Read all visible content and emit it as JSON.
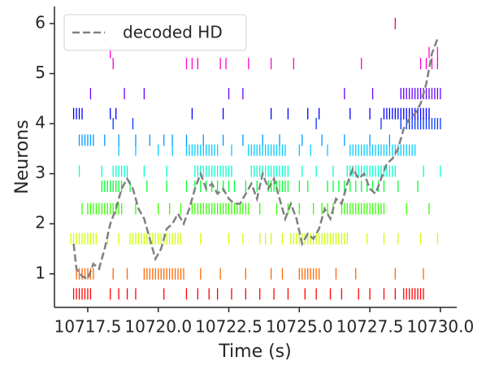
{
  "chart_data": {
    "type": "raster",
    "xlabel": "Time (s)",
    "ylabel": "Neurons",
    "xlim": [
      10716.32,
      10730.58
    ],
    "ylim": [
      0.33,
      6.34
    ],
    "xticks": [
      10717.5,
      {
        "value": 10720,
        "label": "10720.0"
      },
      10722.5,
      {
        "value": 10725,
        "label": "10725.0"
      },
      10727.5,
      {
        "value": 10730,
        "label": "10730.0"
      }
    ],
    "yticks": [
      1,
      2,
      3,
      4,
      5,
      6
    ],
    "legend": "upper left",
    "rows": [
      {
        "color": "#ff0000",
        "level": 0.6,
        "times": [
          10717.0,
          10717.1,
          10717.2,
          10717.3,
          10717.4,
          10717.5,
          10717.6,
          10718.3,
          10718.6,
          10718.9,
          10719.2,
          10720.2,
          10721.0,
          10721.4,
          10721.8,
          10722.1,
          10722.6,
          10723.1,
          10723.6,
          10724.1,
          10724.6,
          10725.2,
          10725.6,
          10726.1,
          10726.5,
          10727.1,
          10727.5,
          10728.0,
          10728.4,
          10728.7,
          10728.8,
          10728.9,
          10729.0,
          10729.1,
          10729.2,
          10729.3,
          10729.4
        ]
      },
      {
        "color": "#ff6600",
        "level": 1.0,
        "times": [
          10717.1,
          10717.2,
          10717.3,
          10717.4,
          10717.5,
          10717.6,
          10717.7,
          10718.4,
          10718.9,
          10719.5,
          10719.6,
          10719.7,
          10719.8,
          10719.9,
          10720.0,
          10720.1,
          10720.2,
          10720.3,
          10720.4,
          10720.5,
          10720.6,
          10720.7,
          10720.8,
          10720.9,
          10721.5,
          10722.2,
          10723.1,
          10724.0,
          10724.4,
          10725.0,
          10725.1,
          10725.2,
          10725.3,
          10725.4,
          10725.5,
          10725.6,
          10725.7,
          10726.3,
          10727.0,
          10728.4,
          10729.4
        ]
      },
      {
        "color": "#ccff00",
        "level": 1.7,
        "times": [
          10716.9,
          10717.0,
          10717.1,
          10717.2,
          10717.3,
          10717.4,
          10717.5,
          10717.6,
          10717.7,
          10717.8,
          10718.2,
          10718.6,
          10719.0,
          10719.1,
          10719.2,
          10719.3,
          10719.4,
          10719.5,
          10719.6,
          10719.7,
          10719.8,
          10719.9,
          10720.0,
          10720.1,
          10720.2,
          10720.3,
          10720.4,
          10720.5,
          10720.6,
          10720.7,
          10720.8,
          10721.5,
          10722.5,
          10723.0,
          10723.6,
          10723.8,
          10724.0,
          10724.4,
          10724.7,
          10724.8,
          10724.9,
          10725.0,
          10725.1,
          10725.2,
          10725.3,
          10725.4,
          10725.5,
          10725.6,
          10725.7,
          10725.8,
          10725.9,
          10726.0,
          10726.1,
          10726.2,
          10726.3,
          10726.4,
          10726.5,
          10726.6,
          10726.7,
          10727.4,
          10728.0,
          10728.5,
          10729.3,
          10729.9
        ]
      },
      {
        "color": "#33ff00",
        "level": 2.3,
        "times": [
          10717.3,
          10717.5,
          10717.6,
          10717.7,
          10717.8,
          10717.9,
          10718.0,
          10718.1,
          10718.2,
          10718.3,
          10718.4,
          10718.5,
          10718.6,
          10718.7,
          10719.2,
          10720.0,
          10720.4,
          10720.8,
          10721.2,
          10721.3,
          10721.4,
          10721.5,
          10721.6,
          10721.7,
          10721.8,
          10721.9,
          10722.0,
          10722.1,
          10722.2,
          10722.3,
          10722.4,
          10722.5,
          10722.6,
          10722.7,
          10722.8,
          10722.9,
          10723.0,
          10723.1,
          10723.2,
          10723.6,
          10724.2,
          10724.6,
          10725.0,
          10725.5,
          10725.8,
          10726.0,
          10726.2,
          10726.5,
          10726.6,
          10726.7,
          10726.8,
          10726.9,
          10727.0,
          10727.1,
          10727.2,
          10727.3,
          10727.4,
          10727.5,
          10727.6,
          10727.7,
          10727.8,
          10727.9,
          10728.0,
          10728.8,
          10729.6
        ]
      },
      {
        "color": "#00ff33",
        "level": 2.75,
        "times": [
          10718.0,
          10718.1,
          10718.2,
          10718.3,
          10718.4,
          10718.5,
          10718.6,
          10718.7,
          10719.0,
          10719.6,
          10720.3,
          10721.0,
          10721.3,
          10721.5,
          10721.7,
          10721.9,
          10722.1,
          10722.3,
          10722.5,
          10722.7,
          10723.1,
          10723.5,
          10723.9,
          10724.0,
          10724.1,
          10724.2,
          10724.3,
          10724.4,
          10724.5,
          10724.6,
          10725.0,
          10725.3,
          10726.0,
          10726.2,
          10726.4,
          10726.6,
          10726.8,
          10727.0,
          10727.2,
          10727.4,
          10727.6,
          10727.8,
          10728.0,
          10728.5,
          10729.2
        ]
      },
      {
        "color": "#00ffcc",
        "level": 3.05,
        "times": [
          10717.2,
          10718.0,
          10718.4,
          10718.5,
          10718.6,
          10718.7,
          10718.8,
          10718.9,
          10719.5,
          10720.3,
          10721.3,
          10721.4,
          10721.5,
          10721.6,
          10721.7,
          10721.8,
          10721.9,
          10722.0,
          10722.1,
          10722.2,
          10722.3,
          10722.4,
          10722.5,
          10722.6,
          10723.3,
          10723.4,
          10723.5,
          10723.6,
          10723.7,
          10723.8,
          10723.9,
          10724.0,
          10724.1,
          10724.2,
          10724.3,
          10724.4,
          10724.5,
          10724.6,
          10725.1,
          10725.6,
          10726.2,
          10726.7,
          10726.8,
          10726.9,
          10727.0,
          10727.1,
          10727.2,
          10727.3,
          10727.4,
          10727.5,
          10727.6,
          10727.7,
          10727.8,
          10727.9,
          10728.0,
          10728.1,
          10728.2,
          10728.3,
          10728.4,
          10729.4,
          10730.0
        ]
      },
      {
        "color": "#00ccff",
        "level": 3.47,
        "times": [
          10718.6,
          10719.2,
          10720.0,
          10720.5,
          10721.0,
          10721.1,
          10721.2,
          10721.3,
          10721.4,
          10721.5,
          10721.6,
          10721.7,
          10721.8,
          10721.9,
          10722.0,
          10722.1,
          10722.6,
          10723.2,
          10723.3,
          10723.4,
          10723.5,
          10723.6,
          10723.7,
          10723.8,
          10723.9,
          10724.0,
          10724.1,
          10724.2,
          10724.3,
          10724.4,
          10724.5,
          10725.0,
          10725.4,
          10726.0,
          10726.8,
          10726.9,
          10727.0,
          10727.1,
          10727.2,
          10727.3,
          10727.4,
          10727.5,
          10727.6,
          10727.7,
          10727.8,
          10727.9,
          10728.0,
          10728.1,
          10728.2,
          10728.3,
          10728.4,
          10728.5,
          10728.6,
          10728.7,
          10728.8,
          10728.9,
          10729.0,
          10729.1
        ]
      },
      {
        "color": "#0099ff",
        "level": 3.67,
        "times": [
          10717.2,
          10717.3,
          10717.4,
          10717.5,
          10717.6,
          10717.7,
          10718.1,
          10718.6,
          10719.2,
          10719.7,
          10720.2,
          10720.5,
          10721.0,
          10721.6,
          10722.3,
          10723.0,
          10723.7,
          10724.3,
          10725.1,
          10725.8,
          10726.6,
          10727.5,
          10728.2
        ]
      },
      {
        "color": "#0033ff",
        "level": 4.0,
        "times": [
          10718.4,
          10719.1,
          10725.6,
          10727.9,
          10728.6,
          10728.8,
          10728.9,
          10729.0,
          10729.1,
          10729.2,
          10729.3,
          10729.4,
          10729.5,
          10729.6,
          10729.7,
          10729.8,
          10729.9,
          10730.0
        ]
      },
      {
        "color": "#0000ff",
        "level": 4.2,
        "times": [
          10717.0,
          10717.1,
          10717.2,
          10717.3,
          10718.3,
          10718.5,
          10721.2,
          10722.3,
          10724.0,
          10724.6,
          10725.3,
          10725.7,
          10726.8,
          10727.5,
          10728.0,
          10728.1,
          10728.2,
          10728.3,
          10728.4,
          10728.5,
          10728.6,
          10728.7,
          10728.8,
          10728.9,
          10729.0,
          10729.1,
          10729.2,
          10729.3,
          10729.4,
          10729.5,
          10729.6
        ]
      },
      {
        "color": "#6600ff",
        "level": 4.6,
        "times": [
          10717.6,
          10718.8,
          10719.5,
          10722.5,
          10723.0,
          10726.6,
          10727.6,
          10728.6,
          10728.7,
          10728.8,
          10728.9,
          10729.0,
          10729.1,
          10729.2,
          10729.3,
          10729.4,
          10729.5,
          10729.6,
          10729.7,
          10729.8,
          10729.9,
          10730.0
        ]
      },
      {
        "color": "#ff00cc",
        "level": 5.2,
        "times": [
          10718.4,
          10721.0,
          10721.2,
          10721.4,
          10722.2,
          10722.4,
          10723.2,
          10724.0,
          10724.8,
          10727.2,
          10729.3,
          10729.5,
          10729.7,
          10729.9
        ]
      },
      {
        "color": "#ff00dd",
        "level": 5.42,
        "times": [
          10718.3,
          10729.6,
          10729.9
        ]
      },
      {
        "color": "#ff0033",
        "level": 6.0,
        "times": [
          10728.4
        ]
      }
    ],
    "line": {
      "name": "decoded HD",
      "color": "#808080",
      "x": [
        10717.0,
        10717.1,
        10717.3,
        10717.5,
        10717.7,
        10717.9,
        10718.1,
        10718.3,
        10718.5,
        10718.7,
        10718.9,
        10719.1,
        10719.3,
        10719.5,
        10719.7,
        10719.9,
        10720.1,
        10720.3,
        10720.5,
        10720.7,
        10720.9,
        10721.1,
        10721.3,
        10721.5,
        10721.7,
        10721.9,
        10722.1,
        10722.3,
        10722.5,
        10722.7,
        10722.9,
        10723.1,
        10723.3,
        10723.5,
        10723.7,
        10723.9,
        10724.1,
        10724.3,
        10724.5,
        10724.7,
        10724.9,
        10725.1,
        10725.3,
        10725.5,
        10725.7,
        10725.9,
        10726.1,
        10726.3,
        10726.5,
        10726.7,
        10726.9,
        10727.1,
        10727.3,
        10727.5,
        10727.7,
        10727.9,
        10728.1,
        10728.3,
        10728.5,
        10728.7,
        10728.9,
        10729.1,
        10729.3,
        10729.5,
        10729.7,
        10729.9
      ],
      "values": [
        1.6,
        1.1,
        0.95,
        0.9,
        1.2,
        1.1,
        1.5,
        2.0,
        2.3,
        2.7,
        2.9,
        2.7,
        2.3,
        2.1,
        1.7,
        1.3,
        1.5,
        1.9,
        2.0,
        2.2,
        2.0,
        2.3,
        2.7,
        3.0,
        2.7,
        2.8,
        2.6,
        2.7,
        2.5,
        2.4,
        2.4,
        2.6,
        2.8,
        2.5,
        3.0,
        2.7,
        2.9,
        2.5,
        2.1,
        2.4,
        2.1,
        1.6,
        1.8,
        1.7,
        1.9,
        2.3,
        2.1,
        2.5,
        2.4,
        2.8,
        3.1,
        2.9,
        3.0,
        2.7,
        2.6,
        2.9,
        3.2,
        3.3,
        3.5,
        3.9,
        4.1,
        4.2,
        4.4,
        4.8,
        5.4,
        5.7
      ]
    }
  }
}
